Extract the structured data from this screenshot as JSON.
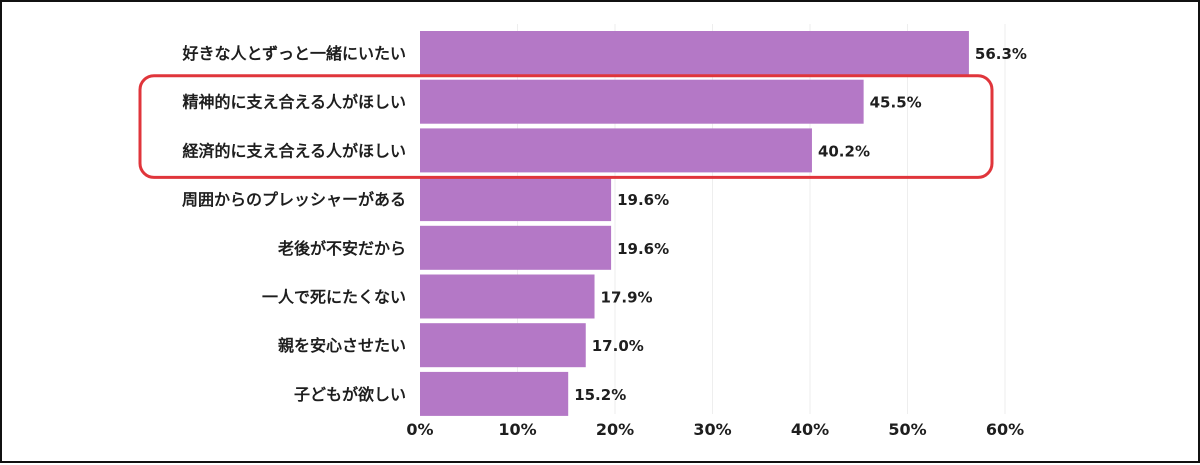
{
  "chart_data": {
    "type": "bar",
    "orientation": "horizontal",
    "categories": [
      "好きな人とずっと一緒にいたい",
      "精神的に支え合える人がほしい",
      "経済的に支え合える人がほしい",
      "周囲からのプレッシャーがある",
      "老後が不安だから",
      "一人で死にたくない",
      "親を安心させたい",
      "子どもが欲しい"
    ],
    "values": [
      56.3,
      45.5,
      40.2,
      19.6,
      19.6,
      17.9,
      17.0,
      15.2
    ],
    "value_labels": [
      "56.3%",
      "45.5%",
      "40.2%",
      "19.6%",
      "19.6%",
      "17.9%",
      "17.0%",
      "15.2%"
    ],
    "xlim": [
      0,
      60
    ],
    "x_ticks": [
      0,
      10,
      20,
      30,
      40,
      50,
      60
    ],
    "x_tick_labels": [
      "0%",
      "10%",
      "20%",
      "30%",
      "40%",
      "50%",
      "60%"
    ],
    "grid": "vertical",
    "highlighted_categories": [
      1,
      2
    ],
    "colors": {
      "bar": "#b478c6",
      "highlight_outline": "#e0353b",
      "gridline": "#eeeeee",
      "text": "#1e1e1e",
      "border": "#111111"
    }
  }
}
